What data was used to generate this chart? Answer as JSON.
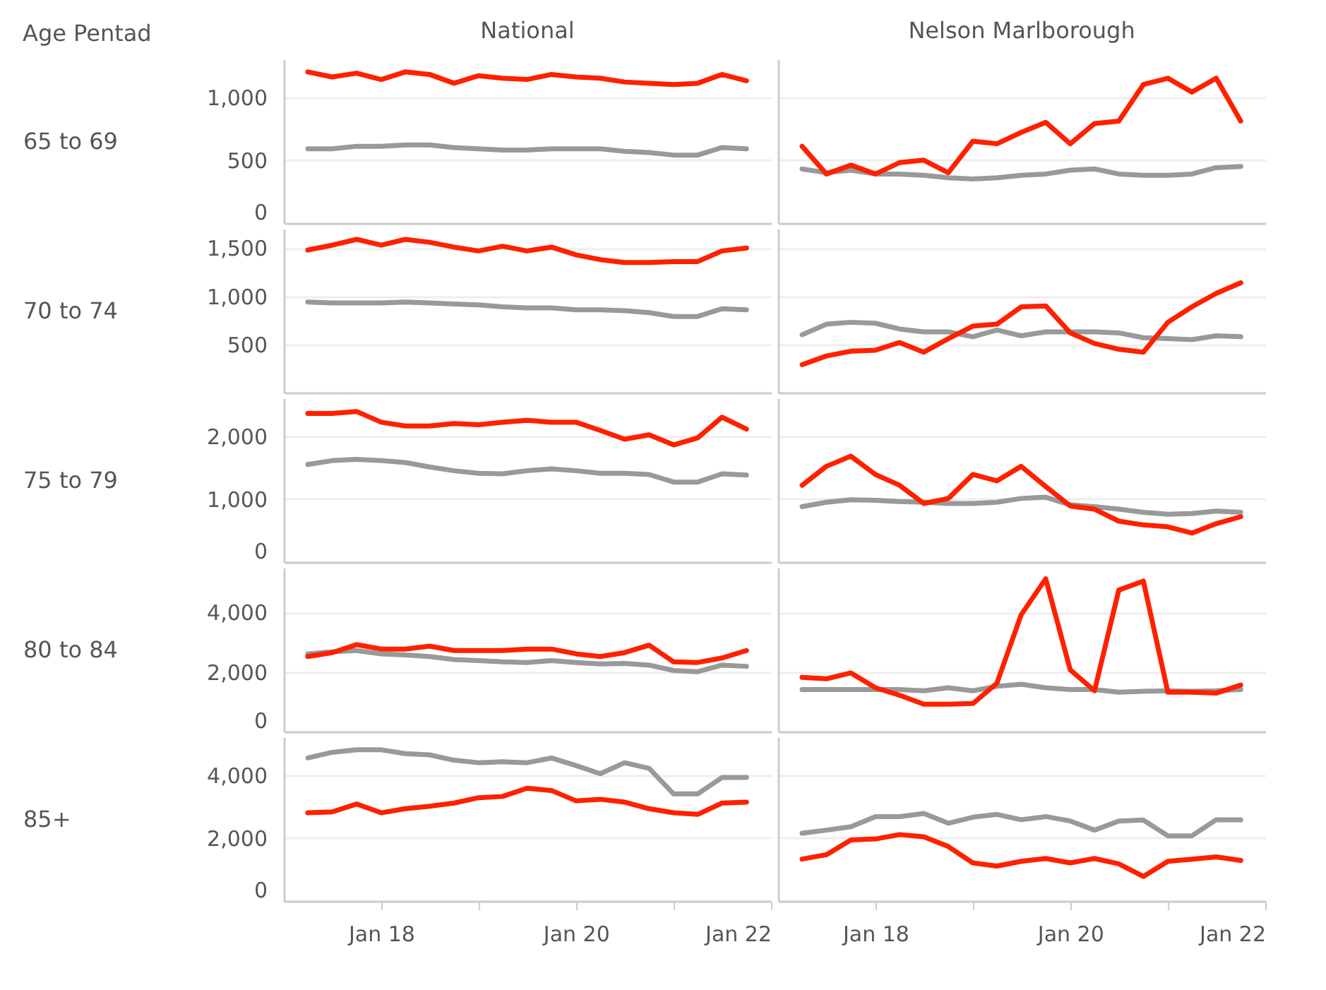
{
  "chart_data": [
    {
      "type": "line",
      "title": "National",
      "ylabel": "65 to 69",
      "annotations": [
        "Age Pentad"
      ],
      "x": [
        "2017-04",
        "2017-07",
        "2017-10",
        "2018-01",
        "2018-04",
        "2018-07",
        "2018-10",
        "2019-01",
        "2019-04",
        "2019-07",
        "2019-10",
        "2020-01",
        "2020-04",
        "2020-07",
        "2020-10",
        "2021-01",
        "2021-04",
        "2021-07",
        "2021-10"
      ],
      "series": [
        {
          "color": "#999999",
          "values": [
            590,
            590,
            610,
            610,
            620,
            620,
            600,
            590,
            580,
            580,
            590,
            590,
            590,
            570,
            560,
            540,
            540,
            600,
            590
          ]
        },
        {
          "color": "#ff2000",
          "values": [
            1200,
            1160,
            1190,
            1140,
            1200,
            1180,
            1110,
            1170,
            1150,
            1140,
            1180,
            1160,
            1150,
            1120,
            1110,
            1100,
            1110,
            1180,
            1130
          ]
        }
      ],
      "xlim": [
        "2017-01-01",
        "2022-01-01"
      ],
      "ylim": [
        0,
        1300
      ],
      "yticks": [
        0,
        500,
        {
          "value": 1000,
          "label": "1,000"
        }
      ],
      "grid": "y",
      "tick_labels": "y"
    },
    {
      "type": "line",
      "title": "Nelson Marlborough",
      "x": [
        "2017-04",
        "2017-07",
        "2017-10",
        "2018-01",
        "2018-04",
        "2018-07",
        "2018-10",
        "2019-01",
        "2019-04",
        "2019-07",
        "2019-10",
        "2020-01",
        "2020-04",
        "2020-07",
        "2020-10",
        "2021-01",
        "2021-04",
        "2021-07",
        "2021-10"
      ],
      "series": [
        {
          "color": "#999999",
          "values": [
            430,
            400,
            420,
            390,
            390,
            380,
            360,
            350,
            360,
            380,
            390,
            420,
            430,
            390,
            380,
            380,
            390,
            440,
            450
          ]
        },
        {
          "color": "#ff2000",
          "values": [
            610,
            390,
            460,
            390,
            480,
            500,
            400,
            650,
            630,
            720,
            800,
            630,
            790,
            810,
            1100,
            1150,
            1040,
            1150,
            810
          ]
        }
      ],
      "xlim": [
        "2017-01-01",
        "2022-01-01"
      ],
      "ylim": [
        0,
        1300
      ],
      "yticks": [
        0,
        500,
        1000
      ],
      "grid": "y",
      "tick_labels": false
    },
    {
      "type": "line",
      "ylabel": "70 to 74",
      "x": [
        "2017-04",
        "2017-07",
        "2017-10",
        "2018-01",
        "2018-04",
        "2018-07",
        "2018-10",
        "2019-01",
        "2019-04",
        "2019-07",
        "2019-10",
        "2020-01",
        "2020-04",
        "2020-07",
        "2020-10",
        "2021-01",
        "2021-04",
        "2021-07",
        "2021-10"
      ],
      "series": [
        {
          "color": "#999999",
          "values": [
            940,
            930,
            930,
            930,
            940,
            930,
            920,
            910,
            890,
            880,
            880,
            860,
            860,
            850,
            830,
            790,
            790,
            870,
            860
          ]
        },
        {
          "color": "#ff2000",
          "values": [
            1480,
            1530,
            1590,
            1530,
            1590,
            1560,
            1510,
            1470,
            1520,
            1470,
            1510,
            1430,
            1380,
            1350,
            1350,
            1360,
            1360,
            1470,
            1500
          ]
        }
      ],
      "xlim": [
        "2017-01-01",
        "2022-01-01"
      ],
      "ylim": [
        0,
        1700
      ],
      "yticks": [
        500,
        {
          "value": 1000,
          "label": "1,000"
        },
        {
          "value": 1500,
          "label": "1,500"
        }
      ],
      "grid": "y",
      "tick_labels": "y"
    },
    {
      "type": "line",
      "x": [
        "2017-04",
        "2017-07",
        "2017-10",
        "2018-01",
        "2018-04",
        "2018-07",
        "2018-10",
        "2019-01",
        "2019-04",
        "2019-07",
        "2019-10",
        "2020-01",
        "2020-04",
        "2020-07",
        "2020-10",
        "2021-01",
        "2021-04",
        "2021-07",
        "2021-10"
      ],
      "series": [
        {
          "color": "#999999",
          "values": [
            600,
            710,
            730,
            720,
            660,
            630,
            630,
            580,
            650,
            590,
            630,
            630,
            630,
            620,
            570,
            560,
            550,
            590,
            580
          ]
        },
        {
          "color": "#ff2000",
          "values": [
            290,
            380,
            430,
            440,
            520,
            420,
            560,
            690,
            710,
            890,
            900,
            620,
            510,
            450,
            420,
            730,
            890,
            1030,
            1140
          ]
        }
      ],
      "xlim": [
        "2017-01-01",
        "2022-01-01"
      ],
      "ylim": [
        0,
        1700
      ],
      "yticks": [
        500,
        1000,
        1500
      ],
      "grid": "y",
      "tick_labels": false
    },
    {
      "type": "line",
      "ylabel": "75 to 79",
      "x": [
        "2017-04",
        "2017-07",
        "2017-10",
        "2018-01",
        "2018-04",
        "2018-07",
        "2018-10",
        "2019-01",
        "2019-04",
        "2019-07",
        "2019-10",
        "2020-01",
        "2020-04",
        "2020-07",
        "2020-10",
        "2021-01",
        "2021-04",
        "2021-07",
        "2021-10"
      ],
      "series": [
        {
          "color": "#999999",
          "values": [
            1550,
            1610,
            1630,
            1610,
            1580,
            1510,
            1450,
            1410,
            1400,
            1450,
            1480,
            1450,
            1410,
            1410,
            1390,
            1270,
            1270,
            1400,
            1380
          ]
        },
        {
          "color": "#ff2000",
          "values": [
            2360,
            2360,
            2390,
            2220,
            2160,
            2160,
            2200,
            2180,
            2220,
            2250,
            2220,
            2220,
            2090,
            1950,
            2020,
            1860,
            1970,
            2300,
            2110
          ]
        }
      ],
      "xlim": [
        "2017-01-01",
        "2022-01-01"
      ],
      "ylim": [
        0,
        2600
      ],
      "yticks": [
        0,
        {
          "value": 1000,
          "label": "1,000"
        },
        {
          "value": 2000,
          "label": "2,000"
        }
      ],
      "grid": "y",
      "tick_labels": "y"
    },
    {
      "type": "line",
      "x": [
        "2017-04",
        "2017-07",
        "2017-10",
        "2018-01",
        "2018-04",
        "2018-07",
        "2018-10",
        "2019-01",
        "2019-04",
        "2019-07",
        "2019-10",
        "2020-01",
        "2020-04",
        "2020-07",
        "2020-10",
        "2021-01",
        "2021-04",
        "2021-07",
        "2021-10"
      ],
      "series": [
        {
          "color": "#999999",
          "values": [
            880,
            950,
            990,
            980,
            960,
            950,
            930,
            930,
            950,
            1010,
            1030,
            910,
            880,
            840,
            790,
            760,
            770,
            810,
            790
          ]
        },
        {
          "color": "#ff2000",
          "values": [
            1220,
            1520,
            1680,
            1390,
            1220,
            930,
            1010,
            1390,
            1290,
            1520,
            1200,
            890,
            840,
            650,
            590,
            560,
            460,
            610,
            720
          ]
        }
      ],
      "xlim": [
        "2017-01-01",
        "2022-01-01"
      ],
      "ylim": [
        0,
        2600
      ],
      "yticks": [
        0,
        1000,
        2000
      ],
      "grid": "y",
      "tick_labels": false
    },
    {
      "type": "line",
      "ylabel": "80 to 84",
      "x": [
        "2017-04",
        "2017-07",
        "2017-10",
        "2018-01",
        "2018-04",
        "2018-07",
        "2018-10",
        "2019-01",
        "2019-04",
        "2019-07",
        "2019-10",
        "2020-01",
        "2020-04",
        "2020-07",
        "2020-10",
        "2021-01",
        "2021-04",
        "2021-07",
        "2021-10"
      ],
      "series": [
        {
          "color": "#999999",
          "values": [
            2610,
            2680,
            2720,
            2610,
            2570,
            2520,
            2420,
            2380,
            2340,
            2320,
            2380,
            2320,
            2270,
            2290,
            2230,
            2050,
            2010,
            2230,
            2190
          ]
        },
        {
          "color": "#ff2000",
          "values": [
            2520,
            2650,
            2920,
            2770,
            2770,
            2870,
            2720,
            2720,
            2720,
            2770,
            2770,
            2610,
            2520,
            2650,
            2900,
            2340,
            2320,
            2470,
            2720
          ]
        }
      ],
      "xlim": [
        "2017-01-01",
        "2022-01-01"
      ],
      "ylim": [
        0,
        5500
      ],
      "yticks": [
        0,
        {
          "value": 2000,
          "label": "2,000"
        },
        {
          "value": 4000,
          "label": "4,000"
        }
      ],
      "grid": "y",
      "tick_labels": "y"
    },
    {
      "type": "line",
      "x": [
        "2017-04",
        "2017-07",
        "2017-10",
        "2018-01",
        "2018-04",
        "2018-07",
        "2018-10",
        "2019-01",
        "2019-04",
        "2019-07",
        "2019-10",
        "2020-01",
        "2020-04",
        "2020-07",
        "2020-10",
        "2021-01",
        "2021-04",
        "2021-07",
        "2021-10"
      ],
      "series": [
        {
          "color": "#999999",
          "values": [
            1410,
            1410,
            1410,
            1410,
            1410,
            1370,
            1470,
            1370,
            1520,
            1590,
            1470,
            1410,
            1410,
            1320,
            1350,
            1370,
            1350,
            1370,
            1410
          ]
        },
        {
          "color": "#ff2000",
          "values": [
            1820,
            1770,
            1970,
            1470,
            1220,
            920,
            920,
            940,
            1620,
            3920,
            5130,
            2070,
            1370,
            4750,
            5050,
            1320,
            1320,
            1290,
            1560
          ]
        }
      ],
      "xlim": [
        "2017-01-01",
        "2022-01-01"
      ],
      "ylim": [
        0,
        5500
      ],
      "yticks": [
        0,
        2000,
        4000
      ],
      "grid": "y",
      "tick_labels": false
    },
    {
      "type": "line",
      "ylabel": "85+",
      "x": [
        "2017-04",
        "2017-07",
        "2017-10",
        "2018-01",
        "2018-04",
        "2018-07",
        "2018-10",
        "2019-01",
        "2019-04",
        "2019-07",
        "2019-10",
        "2020-01",
        "2020-04",
        "2020-07",
        "2020-10",
        "2021-01",
        "2021-04",
        "2021-07",
        "2021-10"
      ],
      "series": [
        {
          "color": "#999999",
          "values": [
            4540,
            4720,
            4800,
            4800,
            4680,
            4640,
            4470,
            4390,
            4420,
            4390,
            4540,
            4300,
            4040,
            4390,
            4210,
            3400,
            3400,
            3920,
            3920
          ]
        },
        {
          "color": "#ff2000",
          "values": [
            2800,
            2830,
            3080,
            2800,
            2930,
            3010,
            3110,
            3280,
            3320,
            3580,
            3510,
            3180,
            3230,
            3140,
            2930,
            2800,
            2750,
            3110,
            3140
          ]
        }
      ],
      "xlim": [
        "2017-01-01",
        "2022-01-01"
      ],
      "xticks": [
        {
          "value": "2018-01-01",
          "label": "Jan 18"
        },
        {
          "value": "2019-01-01",
          "label": null
        },
        {
          "value": "2020-01-01",
          "label": "Jan 20"
        },
        {
          "value": "2021-01-01",
          "label": null
        },
        {
          "value": "2022-01-01",
          "label": "Jan 22"
        }
      ],
      "ylim": [
        0,
        5200
      ],
      "yticks": [
        0,
        {
          "value": 2000,
          "label": "2,000"
        },
        {
          "value": 4000,
          "label": "4,000"
        }
      ],
      "grid": "y"
    },
    {
      "type": "line",
      "x": [
        "2017-04",
        "2017-07",
        "2017-10",
        "2018-01",
        "2018-04",
        "2018-07",
        "2018-10",
        "2019-01",
        "2019-04",
        "2019-07",
        "2019-10",
        "2020-01",
        "2020-04",
        "2020-07",
        "2020-10",
        "2021-01",
        "2021-04",
        "2021-07",
        "2021-10"
      ],
      "series": [
        {
          "color": "#999999",
          "values": [
            2150,
            2250,
            2360,
            2680,
            2680,
            2780,
            2470,
            2660,
            2750,
            2580,
            2680,
            2540,
            2250,
            2540,
            2570,
            2070,
            2070,
            2580,
            2580
          ]
        },
        {
          "color": "#ff2000",
          "values": [
            1330,
            1470,
            1940,
            1970,
            2110,
            2040,
            1730,
            1210,
            1110,
            1260,
            1350,
            1210,
            1350,
            1180,
            780,
            1260,
            1330,
            1400,
            1290
          ]
        }
      ],
      "xlim": [
        "2017-01-01",
        "2022-01-01"
      ],
      "xticks": [
        {
          "value": "2018-01-01",
          "label": "Jan 18"
        },
        {
          "value": "2019-01-01",
          "label": null
        },
        {
          "value": "2020-01-01",
          "label": "Jan 20"
        },
        {
          "value": "2021-01-01",
          "label": null
        },
        {
          "value": "2022-01-01",
          "label": "Jan 22"
        }
      ],
      "ylim": [
        0,
        5200
      ],
      "yticks": [
        0,
        2000,
        4000
      ],
      "grid": "y",
      "tick_labels": "x"
    }
  ]
}
